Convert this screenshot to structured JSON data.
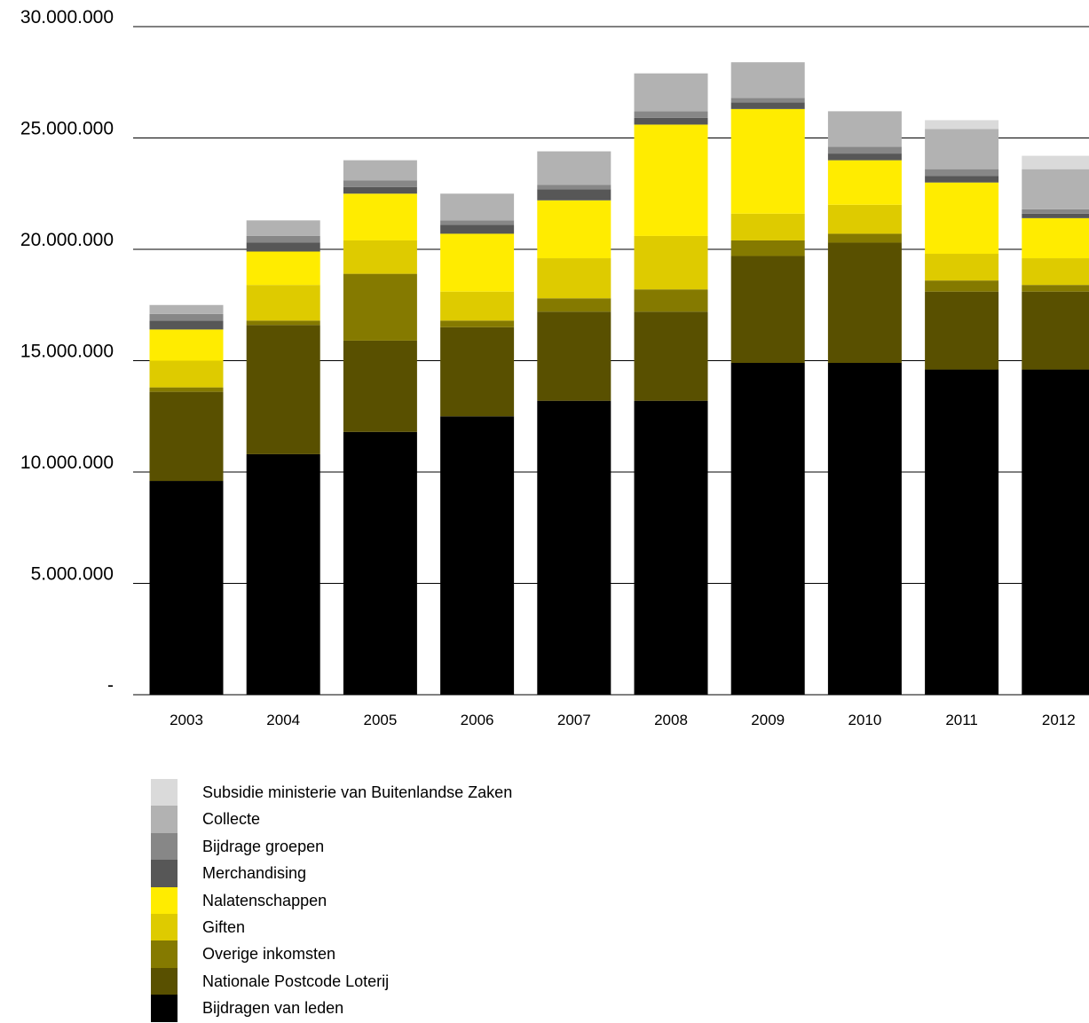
{
  "chart_data": {
    "type": "bar",
    "stacked": true,
    "categories": [
      "2003",
      "2004",
      "2005",
      "2006",
      "2007",
      "2008",
      "2009",
      "2010",
      "2011",
      "2012"
    ],
    "ylim": [
      0,
      30000000
    ],
    "ytick_values": [
      0,
      5000000,
      10000000,
      15000000,
      20000000,
      25000000,
      30000000
    ],
    "ytick_labels": [
      "-",
      "5.000.000",
      "10.000.000",
      "15.000.000",
      "20.000.000",
      "25.000.000",
      "30.000.000"
    ],
    "grid": true,
    "legend_position": "bottom",
    "series": [
      {
        "name": "Bijdragen van leden",
        "color": "#000000",
        "values": [
          9600000,
          10800000,
          11800000,
          12500000,
          13200000,
          13200000,
          14900000,
          14900000,
          14600000,
          14600000
        ]
      },
      {
        "name": "Nationale Postcode Loterij",
        "color": "#595000",
        "values": [
          4000000,
          5800000,
          4100000,
          4000000,
          4000000,
          4000000,
          4800000,
          5400000,
          3500000,
          3500000
        ]
      },
      {
        "name": "Overige inkomsten",
        "color": "#857a00",
        "values": [
          200000,
          200000,
          3000000,
          300000,
          600000,
          1000000,
          700000,
          400000,
          500000,
          300000
        ]
      },
      {
        "name": "Giften",
        "color": "#decb00",
        "values": [
          1200000,
          1600000,
          1500000,
          1300000,
          1800000,
          2400000,
          1200000,
          1300000,
          1200000,
          1200000
        ]
      },
      {
        "name": "Nalatenschappen",
        "color": "#ffec00",
        "values": [
          1400000,
          1500000,
          2100000,
          2600000,
          2600000,
          5000000,
          4700000,
          2000000,
          3200000,
          1800000
        ]
      },
      {
        "name": "Merchandising",
        "color": "#575757",
        "values": [
          400000,
          400000,
          300000,
          400000,
          500000,
          300000,
          300000,
          300000,
          300000,
          200000
        ]
      },
      {
        "name": "Bijdrage groepen",
        "color": "#878787",
        "values": [
          300000,
          300000,
          300000,
          200000,
          200000,
          300000,
          200000,
          300000,
          300000,
          200000
        ]
      },
      {
        "name": "Collecte",
        "color": "#b2b2b2",
        "values": [
          400000,
          700000,
          900000,
          1200000,
          1500000,
          1700000,
          1600000,
          1600000,
          1800000,
          1800000
        ]
      },
      {
        "name": "Subsidie ministerie van Buitenlandse Zaken",
        "color": "#dadada",
        "values": [
          0,
          0,
          0,
          0,
          0,
          0,
          0,
          0,
          400000,
          600000
        ]
      }
    ]
  }
}
